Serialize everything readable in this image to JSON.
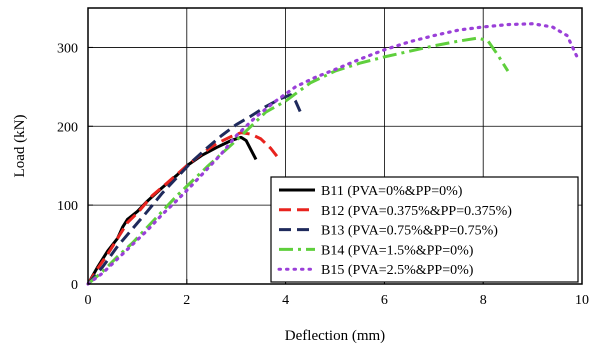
{
  "chart_data": {
    "type": "line",
    "title": "",
    "xlabel": "Deflection (mm)",
    "ylabel": "Load (kN)",
    "xlim": [
      0,
      10
    ],
    "ylim": [
      0,
      350
    ],
    "xticks": [
      0,
      2,
      4,
      6,
      8,
      10
    ],
    "yticks": [
      0,
      100,
      200,
      300
    ],
    "grid": true,
    "legend_position": "bottom-right",
    "series": [
      {
        "name": "B11 (PVA=0%&PP=0%)",
        "color": "#000000",
        "dash": "solid",
        "x": [
          0,
          0.2,
          0.4,
          0.6,
          0.7,
          0.8,
          1.0,
          1.2,
          1.5,
          1.8,
          2.0,
          2.3,
          2.6,
          2.9,
          3.1,
          3.2,
          3.3,
          3.4
        ],
        "y": [
          0,
          22,
          42,
          58,
          72,
          82,
          92,
          105,
          122,
          138,
          150,
          163,
          173,
          182,
          186,
          182,
          170,
          158
        ]
      },
      {
        "name": "B12 (PVA=0.375%&PP=0.375%)",
        "color": "#e8231e",
        "dash": "dashed",
        "x": [
          0,
          0.2,
          0.4,
          0.6,
          0.8,
          1.0,
          1.3,
          1.6,
          2.0,
          2.3,
          2.6,
          2.9,
          3.1,
          3.3,
          3.5,
          3.7,
          3.85
        ],
        "y": [
          0,
          20,
          38,
          58,
          78,
          90,
          112,
          128,
          150,
          165,
          178,
          187,
          192,
          190,
          184,
          172,
          160
        ]
      },
      {
        "name": "B13 (PVA=0.75%&PP=0.75%)",
        "color": "#1f2a5c",
        "dash": "dashed",
        "x": [
          0,
          0.3,
          0.6,
          0.9,
          1.2,
          1.5,
          1.8,
          2.1,
          2.4,
          2.7,
          3.0,
          3.3,
          3.6,
          3.9,
          4.1,
          4.2,
          4.3
        ],
        "y": [
          0,
          22,
          48,
          70,
          92,
          115,
          135,
          155,
          172,
          188,
          202,
          213,
          225,
          235,
          240,
          232,
          218
        ]
      },
      {
        "name": "B14 (PVA=1.5%&PP=0%)",
        "color": "#5fcf3c",
        "dash": "dashdot",
        "x": [
          0,
          0.3,
          0.6,
          0.9,
          1.2,
          1.5,
          1.8,
          2.1,
          2.4,
          2.7,
          3.0,
          3.3,
          3.6,
          4.0,
          4.5,
          5.0,
          5.5,
          6.0,
          6.5,
          7.0,
          7.5,
          7.9,
          8.1,
          8.3,
          8.5
        ],
        "y": [
          0,
          16,
          35,
          52,
          72,
          92,
          112,
          130,
          148,
          165,
          182,
          200,
          218,
          232,
          255,
          270,
          280,
          288,
          295,
          302,
          308,
          312,
          308,
          290,
          270
        ]
      },
      {
        "name": "B15 (PVA=2.5%&PP=0%)",
        "color": "#9a3fd8",
        "dash": "dotted",
        "x": [
          0,
          0.3,
          0.6,
          0.9,
          1.2,
          1.5,
          1.8,
          2.1,
          2.4,
          2.7,
          3.0,
          3.4,
          3.8,
          4.2,
          4.6,
          5.0,
          5.5,
          6.0,
          6.5,
          7.0,
          7.5,
          8.0,
          8.5,
          9.0,
          9.4,
          9.7,
          9.9
        ],
        "y": [
          0,
          14,
          32,
          50,
          68,
          88,
          106,
          125,
          145,
          165,
          188,
          212,
          232,
          250,
          262,
          272,
          285,
          297,
          307,
          315,
          322,
          326,
          329,
          330,
          326,
          315,
          288
        ]
      }
    ]
  }
}
